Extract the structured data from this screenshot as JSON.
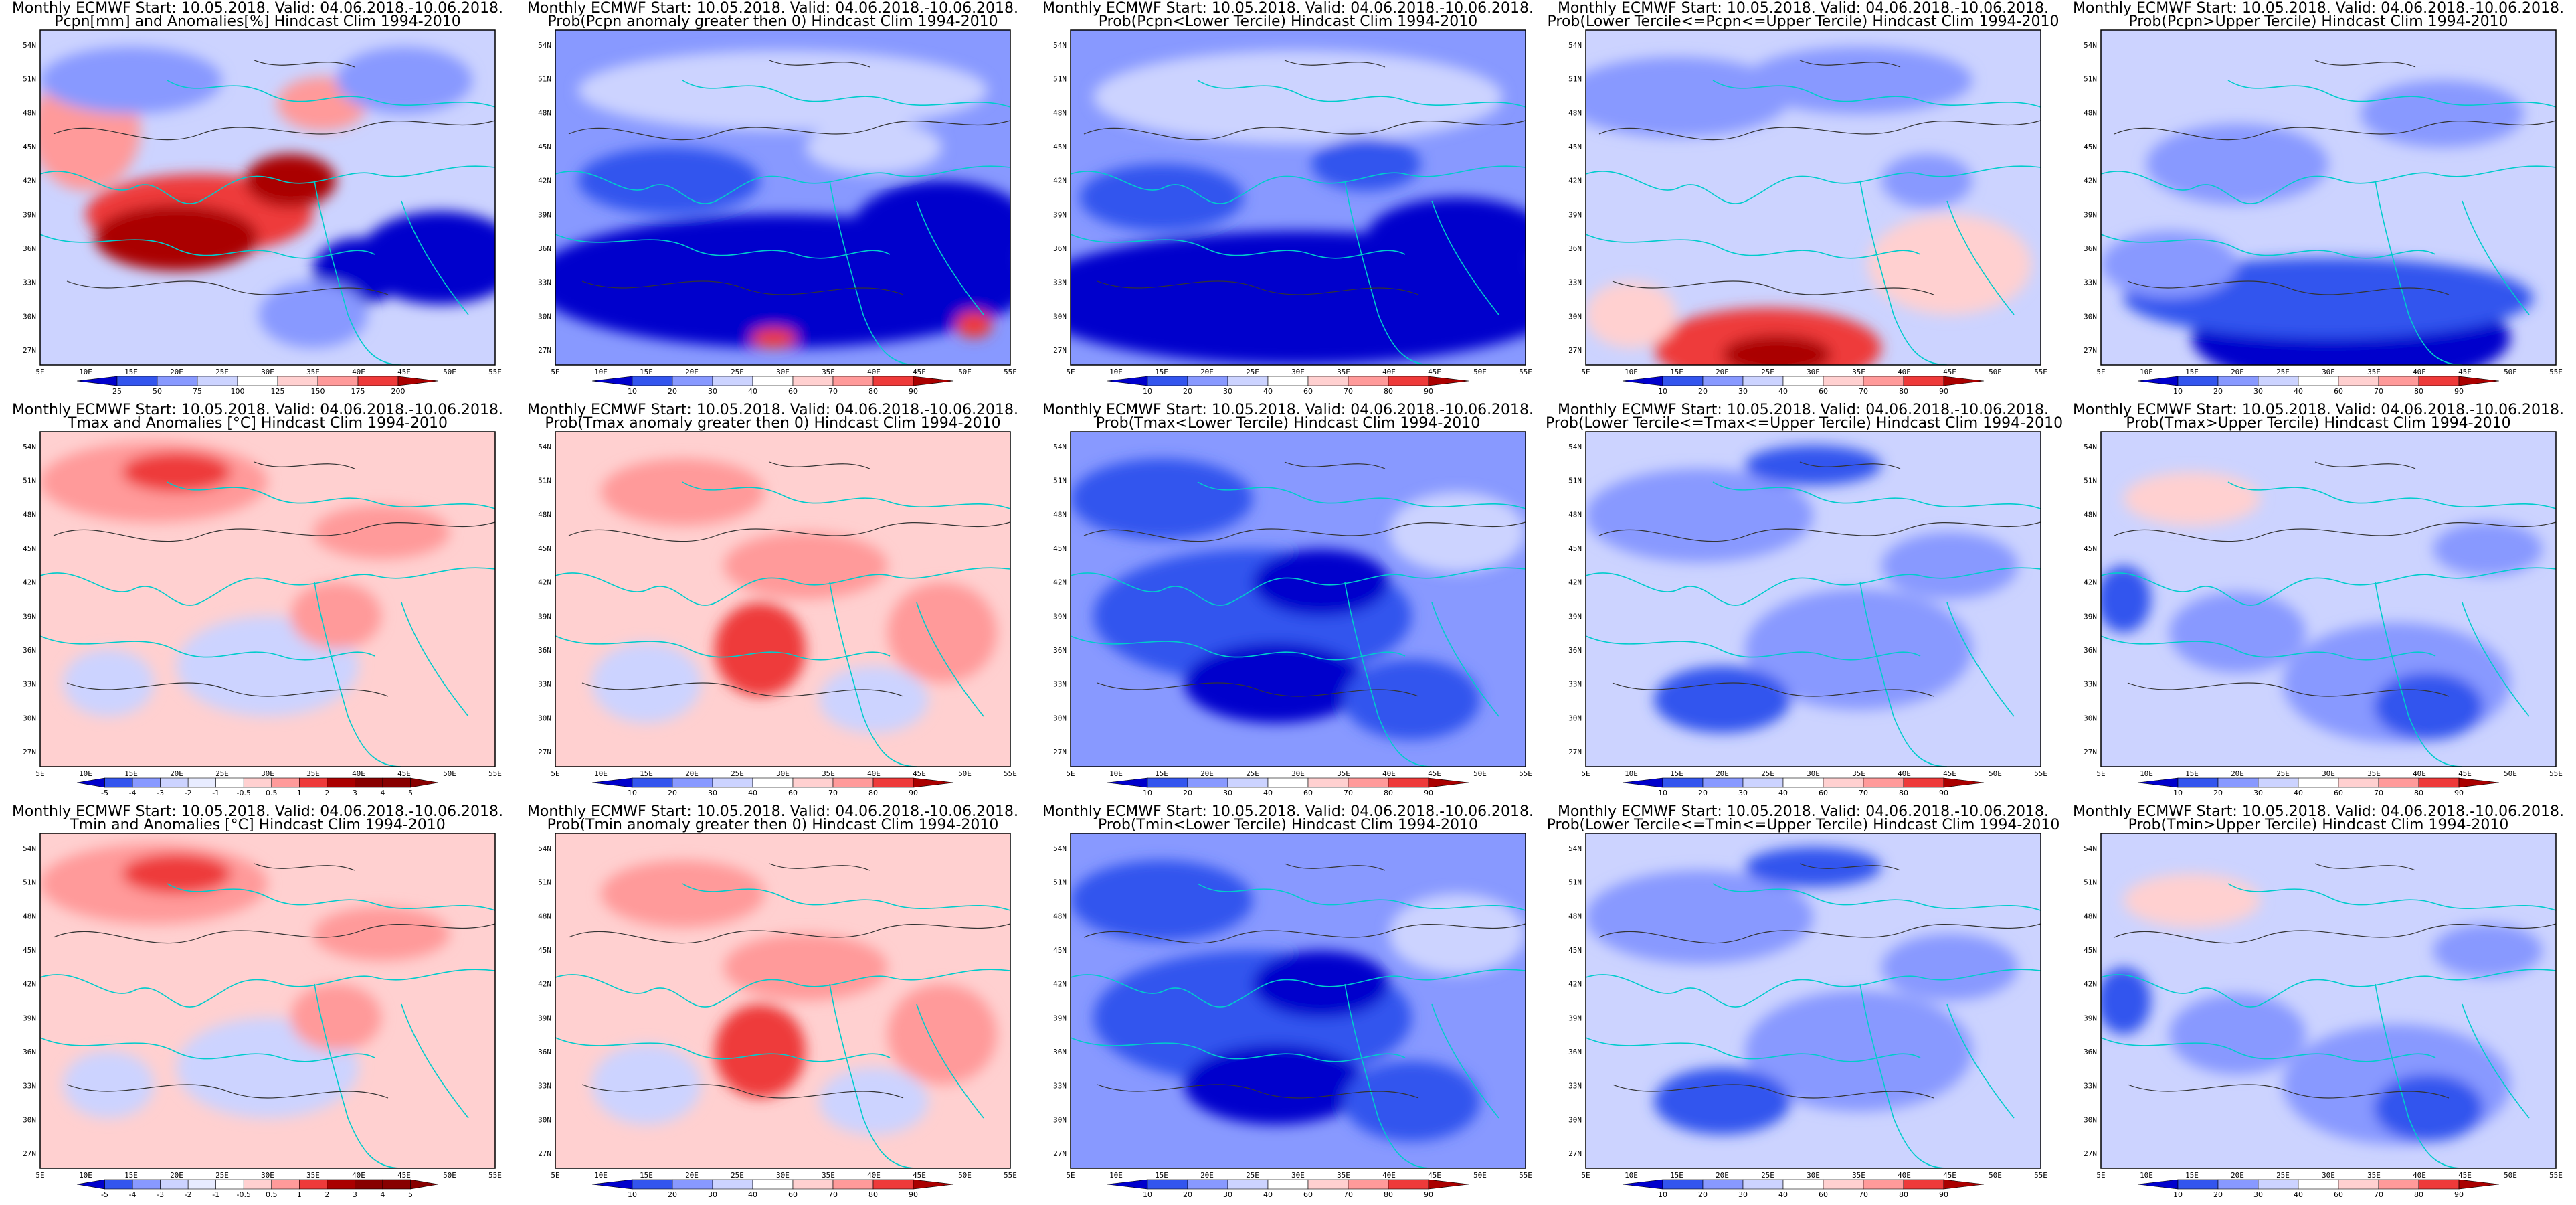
{
  "figure": {
    "lat_ticks": [
      "54N",
      "51N",
      "48N",
      "45N",
      "42N",
      "39N",
      "36N",
      "33N",
      "30N",
      "27N"
    ],
    "lon_ticks": [
      "5E",
      "10E",
      "15E",
      "20E",
      "25E",
      "30E",
      "35E",
      "40E",
      "45E",
      "50E",
      "55E"
    ],
    "colors": {
      "blue_dark": "#0000cc",
      "blue_mid": "#3355ee",
      "blue_light": "#8899ff",
      "blue_pale": "#ccd3ff",
      "red_pale": "#ffd0d0",
      "red_light": "#ff9a9a",
      "red_mid": "#ee3a3a",
      "red_dark": "#aa0000",
      "border": "#00cccc",
      "contour": "#333333"
    }
  },
  "panels": [
    {
      "id": "pcpn-anom",
      "title1": "Monthly ECMWF Start: 10.05.2018. Valid: 04.06.2018.-10.06.2018.",
      "title2": "Pcpn[mm] and Anomalies[%] Hindcast Clim 1994-2010",
      "scheme": "pcpn_anom",
      "colorbar": [
        "25",
        "50",
        "75",
        "100",
        "125",
        "150",
        "175",
        "200"
      ]
    },
    {
      "id": "pcpn-prob-gt0",
      "title1": "Monthly ECMWF Start: 10.05.2018. Valid: 04.06.2018.-10.06.2018.",
      "title2": "Prob(Pcpn anomaly greater then 0) Hindcast Clim 1994-2010",
      "scheme": "pcpn_dry",
      "colorbar": [
        "10",
        "20",
        "30",
        "40",
        "60",
        "70",
        "80",
        "90"
      ]
    },
    {
      "id": "pcpn-prob-lower",
      "title1": "Monthly ECMWF Start: 10.05.2018. Valid: 04.06.2018.-10.06.2018.",
      "title2": "Prob(Pcpn<Lower Tercile) Hindcast Clim 1994-2010",
      "scheme": "pcpn_lower",
      "colorbar": [
        "10",
        "20",
        "30",
        "40",
        "60",
        "70",
        "80",
        "90"
      ]
    },
    {
      "id": "pcpn-prob-middle",
      "title1": "Monthly ECMWF Start: 10.05.2018. Valid: 04.06.2018.-10.06.2018.",
      "title2": "Prob(Lower Tercile<=Pcpn<=Upper Tercile) Hindcast Clim 1994-2010",
      "scheme": "pcpn_middle",
      "colorbar": [
        "10",
        "20",
        "30",
        "40",
        "60",
        "70",
        "80",
        "90"
      ]
    },
    {
      "id": "pcpn-prob-upper",
      "title1": "Monthly ECMWF Start: 10.05.2018. Valid: 04.06.2018.-10.06.2018.",
      "title2": "Prob(Pcpn>Upper Tercile) Hindcast Clim 1994-2010",
      "scheme": "pcpn_upper",
      "colorbar": [
        "10",
        "20",
        "30",
        "40",
        "60",
        "70",
        "80",
        "90"
      ]
    },
    {
      "id": "tmax-anom",
      "title1": "Monthly ECMWF Start: 10.05.2018. Valid: 04.06.2018.-10.06.2018.",
      "title2": "Tmax and Anomalies [°C] Hindcast Clim 1994-2010",
      "scheme": "t_anom",
      "colorbar": [
        "-5",
        "-4",
        "-3",
        "-2",
        "-1",
        "-0.5",
        "0.5",
        "1",
        "2",
        "3",
        "4",
        "5"
      ]
    },
    {
      "id": "tmax-prob-gt0",
      "title1": "Monthly ECMWF Start: 10.05.2018. Valid: 04.06.2018.-10.06.2018.",
      "title2": "Prob(Tmax anomaly greater then 0) Hindcast Clim 1994-2010",
      "scheme": "t_prob_warm",
      "colorbar": [
        "10",
        "20",
        "30",
        "40",
        "60",
        "70",
        "80",
        "90"
      ]
    },
    {
      "id": "tmax-prob-lower",
      "title1": "Monthly ECMWF Start: 10.05.2018. Valid: 04.06.2018.-10.06.2018.",
      "title2": "Prob(Tmax<Lower Tercile) Hindcast Clim 1994-2010",
      "scheme": "t_lower",
      "colorbar": [
        "10",
        "20",
        "30",
        "40",
        "60",
        "70",
        "80",
        "90"
      ]
    },
    {
      "id": "tmax-prob-middle",
      "title1": "Monthly ECMWF Start: 10.05.2018. Valid: 04.06.2018.-10.06.2018.",
      "title2": "Prob(Lower Tercile<=Tmax<=Upper Tercile) Hindcast Clim 1994-2010",
      "scheme": "t_middle",
      "colorbar": [
        "10",
        "20",
        "30",
        "40",
        "60",
        "70",
        "80",
        "90"
      ]
    },
    {
      "id": "tmax-prob-upper",
      "title1": "Monthly ECMWF Start: 10.05.2018. Valid: 04.06.2018.-10.06.2018.",
      "title2": "Prob(Tmax>Upper Tercile) Hindcast Clim 1994-2010",
      "scheme": "t_upper",
      "colorbar": [
        "10",
        "20",
        "30",
        "40",
        "60",
        "70",
        "80",
        "90"
      ]
    },
    {
      "id": "tmin-anom",
      "title1": "Monthly ECMWF Start: 10.05.2018. Valid: 04.06.2018.-10.06.2018.",
      "title2": "Tmin and Anomalies [°C] Hindcast Clim 1994-2010",
      "scheme": "t_anom",
      "colorbar": [
        "-5",
        "-4",
        "-3",
        "-2",
        "-1",
        "-0.5",
        "0.5",
        "1",
        "2",
        "3",
        "4",
        "5"
      ]
    },
    {
      "id": "tmin-prob-gt0",
      "title1": "Monthly ECMWF Start: 10.05.2018. Valid: 04.06.2018.-10.06.2018.",
      "title2": "Prob(Tmin anomaly greater then 0) Hindcast Clim 1994-2010",
      "scheme": "t_prob_warm",
      "colorbar": [
        "10",
        "20",
        "30",
        "40",
        "60",
        "70",
        "80",
        "90"
      ]
    },
    {
      "id": "tmin-prob-lower",
      "title1": "Monthly ECMWF Start: 10.05.2018. Valid: 04.06.2018.-10.06.2018.",
      "title2": "Prob(Tmin<Lower Tercile) Hindcast Clim 1994-2010",
      "scheme": "t_lower",
      "colorbar": [
        "10",
        "20",
        "30",
        "40",
        "60",
        "70",
        "80",
        "90"
      ]
    },
    {
      "id": "tmin-prob-middle",
      "title1": "Monthly ECMWF Start: 10.05.2018. Valid: 04.06.2018.-10.06.2018.",
      "title2": "Prob(Lower Tercile<=Tmin<=Upper Tercile) Hindcast Clim 1994-2010",
      "scheme": "t_middle",
      "colorbar": [
        "10",
        "20",
        "30",
        "40",
        "60",
        "70",
        "80",
        "90"
      ]
    },
    {
      "id": "tmin-prob-upper",
      "title1": "Monthly ECMWF Start: 10.05.2018. Valid: 04.06.2018.-10.06.2018.",
      "title2": "Prob(Tmin>Upper Tercile) Hindcast Clim 1994-2010",
      "scheme": "t_upper",
      "colorbar": [
        "10",
        "20",
        "30",
        "40",
        "60",
        "70",
        "80",
        "90"
      ]
    }
  ]
}
